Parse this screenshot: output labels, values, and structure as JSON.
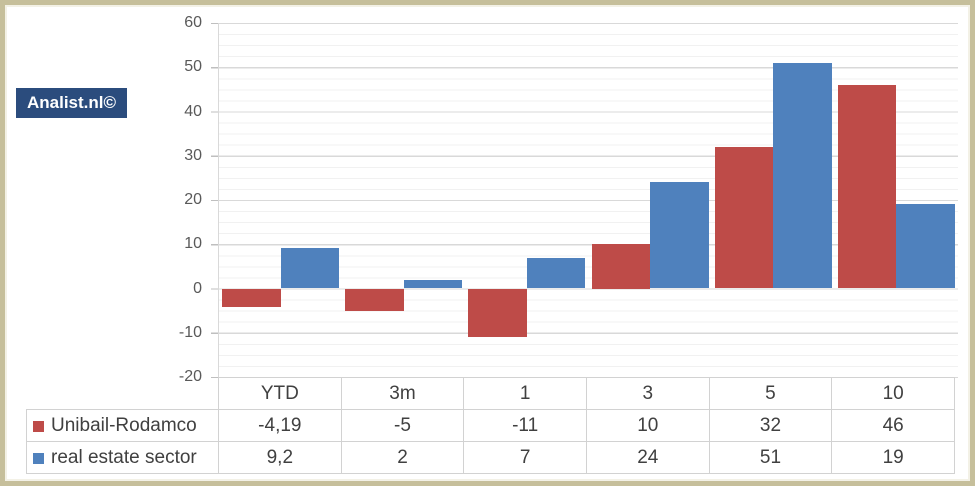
{
  "frame": {
    "border_color": "#c6bf9b",
    "inner_line_color": "#f3f1e6",
    "background": "#ffffff"
  },
  "logo": {
    "text": "Analist.nl©",
    "background": "#2b4c7d",
    "text_color": "#ffffff"
  },
  "chart_data": {
    "type": "bar",
    "title": "",
    "xlabel": "",
    "ylabel": "",
    "categories": [
      "YTD",
      "3m",
      "1",
      "3",
      "5",
      "10"
    ],
    "series": [
      {
        "name": "Unibail-Rodamco",
        "color": "#be4b48",
        "values": [
          -4.19,
          -5,
          -11,
          10,
          32,
          46
        ]
      },
      {
        "name": "real estate sector",
        "color": "#4f81bd",
        "values": [
          9.2,
          2,
          7,
          24,
          51,
          19
        ]
      }
    ],
    "ylim": [
      -20,
      60
    ],
    "y_major_unit": 10,
    "y_minor_unit": 2.5,
    "y_tick_labels": [
      "60",
      "50",
      "40",
      "30",
      "20",
      "10",
      "0",
      "-10",
      "-20"
    ],
    "grid": "horizontal major and minor gridlines",
    "legend_position": "data-table row labels",
    "gridline_major_color": "#d9d9d9",
    "gridline_minor_color": "#f1f1f1",
    "axis_text_color": "#595959"
  },
  "table": {
    "columns": [
      "YTD",
      "3m",
      "1",
      "3",
      "5",
      "10"
    ],
    "rows": [
      {
        "label": "Unibail-Rodamco",
        "swatch_color": "#be4b48",
        "values": [
          "-4,19",
          "-5",
          "-11",
          "10",
          "32",
          "46"
        ]
      },
      {
        "label": "real estate sector",
        "swatch_color": "#4f81bd",
        "values": [
          "9,2",
          "2",
          "7",
          "24",
          "51",
          "19"
        ]
      }
    ],
    "border_color": "#d2d2d2",
    "text_color": "#404040"
  }
}
